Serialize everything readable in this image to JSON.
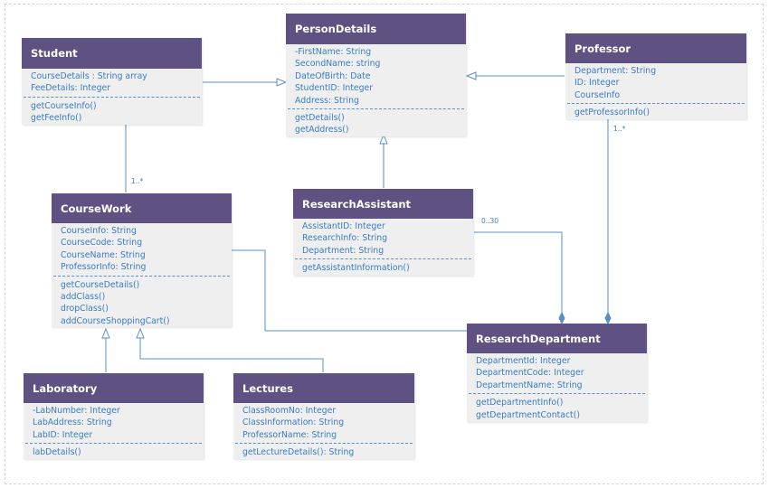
{
  "colors": {
    "header": "#5f5182",
    "header_text": "#ffffff",
    "body": "#efefef",
    "member_text": "#3a7cc0",
    "connector": "#5a8fc6"
  },
  "classes": {
    "person_details": {
      "name": "PersonDetails",
      "attributes": [
        "-FirstName: String",
        "SecondName: string",
        "DateOfBirth: Date",
        "StudentID: Integer",
        "Address: String"
      ],
      "operations": [
        "getDetails()",
        "getAddress()"
      ]
    },
    "student": {
      "name": "Student",
      "attributes": [
        "CourseDetails : String array",
        "FeeDetails: Integer"
      ],
      "operations": [
        "getCourseInfo()",
        "getFeeInfo()"
      ]
    },
    "professor": {
      "name": "Professor",
      "attributes": [
        "Department: String",
        "ID: Integer",
        "CourseInfo"
      ],
      "operations": [
        "getProfessorInfo()"
      ]
    },
    "research_assistant": {
      "name": "ResearchAssistant",
      "attributes": [
        "AssistantID: Integer",
        "ResearchInfo: String",
        "Department: String"
      ],
      "operations": [
        "getAssistantInformation()"
      ]
    },
    "course_work": {
      "name": "CourseWork",
      "attributes": [
        "CourseInfo: String",
        "CourseCode: String",
        "CourseName: String",
        "ProfessorInfo: String"
      ],
      "operations": [
        "getCourseDetails()",
        "addClass()",
        "dropClass()",
        "addCourseShoppingCart()"
      ]
    },
    "research_department": {
      "name": "ResearchDepartment",
      "attributes": [
        "DepartmentId: Integer",
        "DepartmentCode: Integer",
        "DepartmentName: String"
      ],
      "operations": [
        "getDepartmentInfo()",
        "getDepartmentContact()"
      ]
    },
    "laboratory": {
      "name": "Laboratory",
      "attributes": [
        "-LabNumber: Integer",
        "LabAddress: String",
        "LabID: Integer"
      ],
      "operations": [
        "labDetails()"
      ]
    },
    "lectures": {
      "name": "Lectures",
      "attributes": [
        "ClassRoomNo: Integer",
        "ClassInformation: String",
        "ProfessorName: String"
      ],
      "operations": [
        "getLectureDetails(): String"
      ]
    }
  },
  "relationships": {
    "generalizations": [
      {
        "from": "Student",
        "to": "PersonDetails"
      },
      {
        "from": "Professor",
        "to": "PersonDetails"
      },
      {
        "from": "ResearchAssistant",
        "to": "PersonDetails"
      },
      {
        "from": "Laboratory",
        "to": "CourseWork"
      },
      {
        "from": "Lectures",
        "to": "CourseWork"
      }
    ],
    "associations": [
      {
        "from": "Student",
        "to": "CourseWork",
        "multiplicity": "1..*"
      },
      {
        "from": "CourseWork",
        "to": "ResearchDepartment",
        "multiplicity": ""
      }
    ],
    "aggregations": [
      {
        "part": "ResearchAssistant",
        "whole": "ResearchDepartment",
        "multiplicity": "0..30"
      },
      {
        "part": "Professor",
        "whole": "ResearchDepartment",
        "multiplicity": "1..*"
      }
    ]
  }
}
